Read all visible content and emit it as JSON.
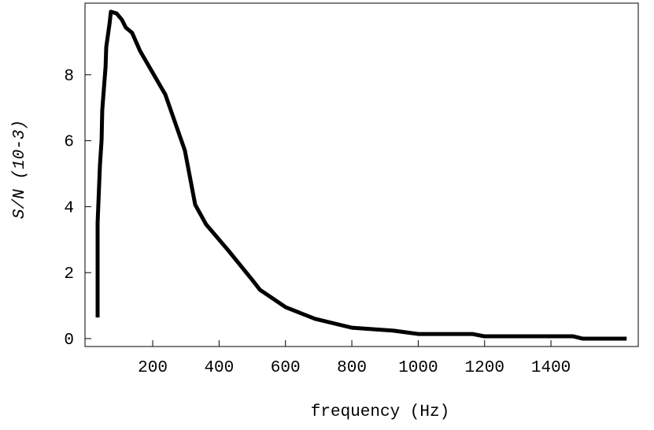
{
  "chart_data": {
    "type": "line",
    "x_label": "frequency (Hz)",
    "y_label": "S/N (10-3)",
    "x": [
      34,
      34,
      41,
      46,
      48,
      58,
      60,
      70,
      74,
      91,
      107,
      119,
      138,
      162,
      238,
      297,
      328,
      361,
      428,
      499,
      523,
      601,
      641,
      689,
      800,
      855,
      926,
      1000,
      1163,
      1199,
      1467,
      1495,
      1628
    ],
    "series": [
      {
        "color": "#000000",
        "values": [
          0.64,
          3.51,
          5.25,
          6.02,
          6.93,
          8.24,
          8.84,
          9.55,
          9.91,
          9.86,
          9.67,
          9.43,
          9.27,
          8.72,
          7.4,
          5.7,
          4.06,
          3.46,
          2.67,
          1.79,
          1.48,
          0.95,
          0.79,
          0.6,
          0.33,
          0.29,
          0.24,
          0.14,
          0.14,
          0.07,
          0.07,
          0,
          0
        ]
      }
    ],
    "xlim": [
      -4,
      1663
    ],
    "ylim": [
      -0.24,
      10.17
    ],
    "xticks": [
      200,
      400,
      600,
      800,
      1000,
      1200,
      1400
    ],
    "yticks": [
      0,
      2,
      4,
      6,
      8
    ]
  }
}
